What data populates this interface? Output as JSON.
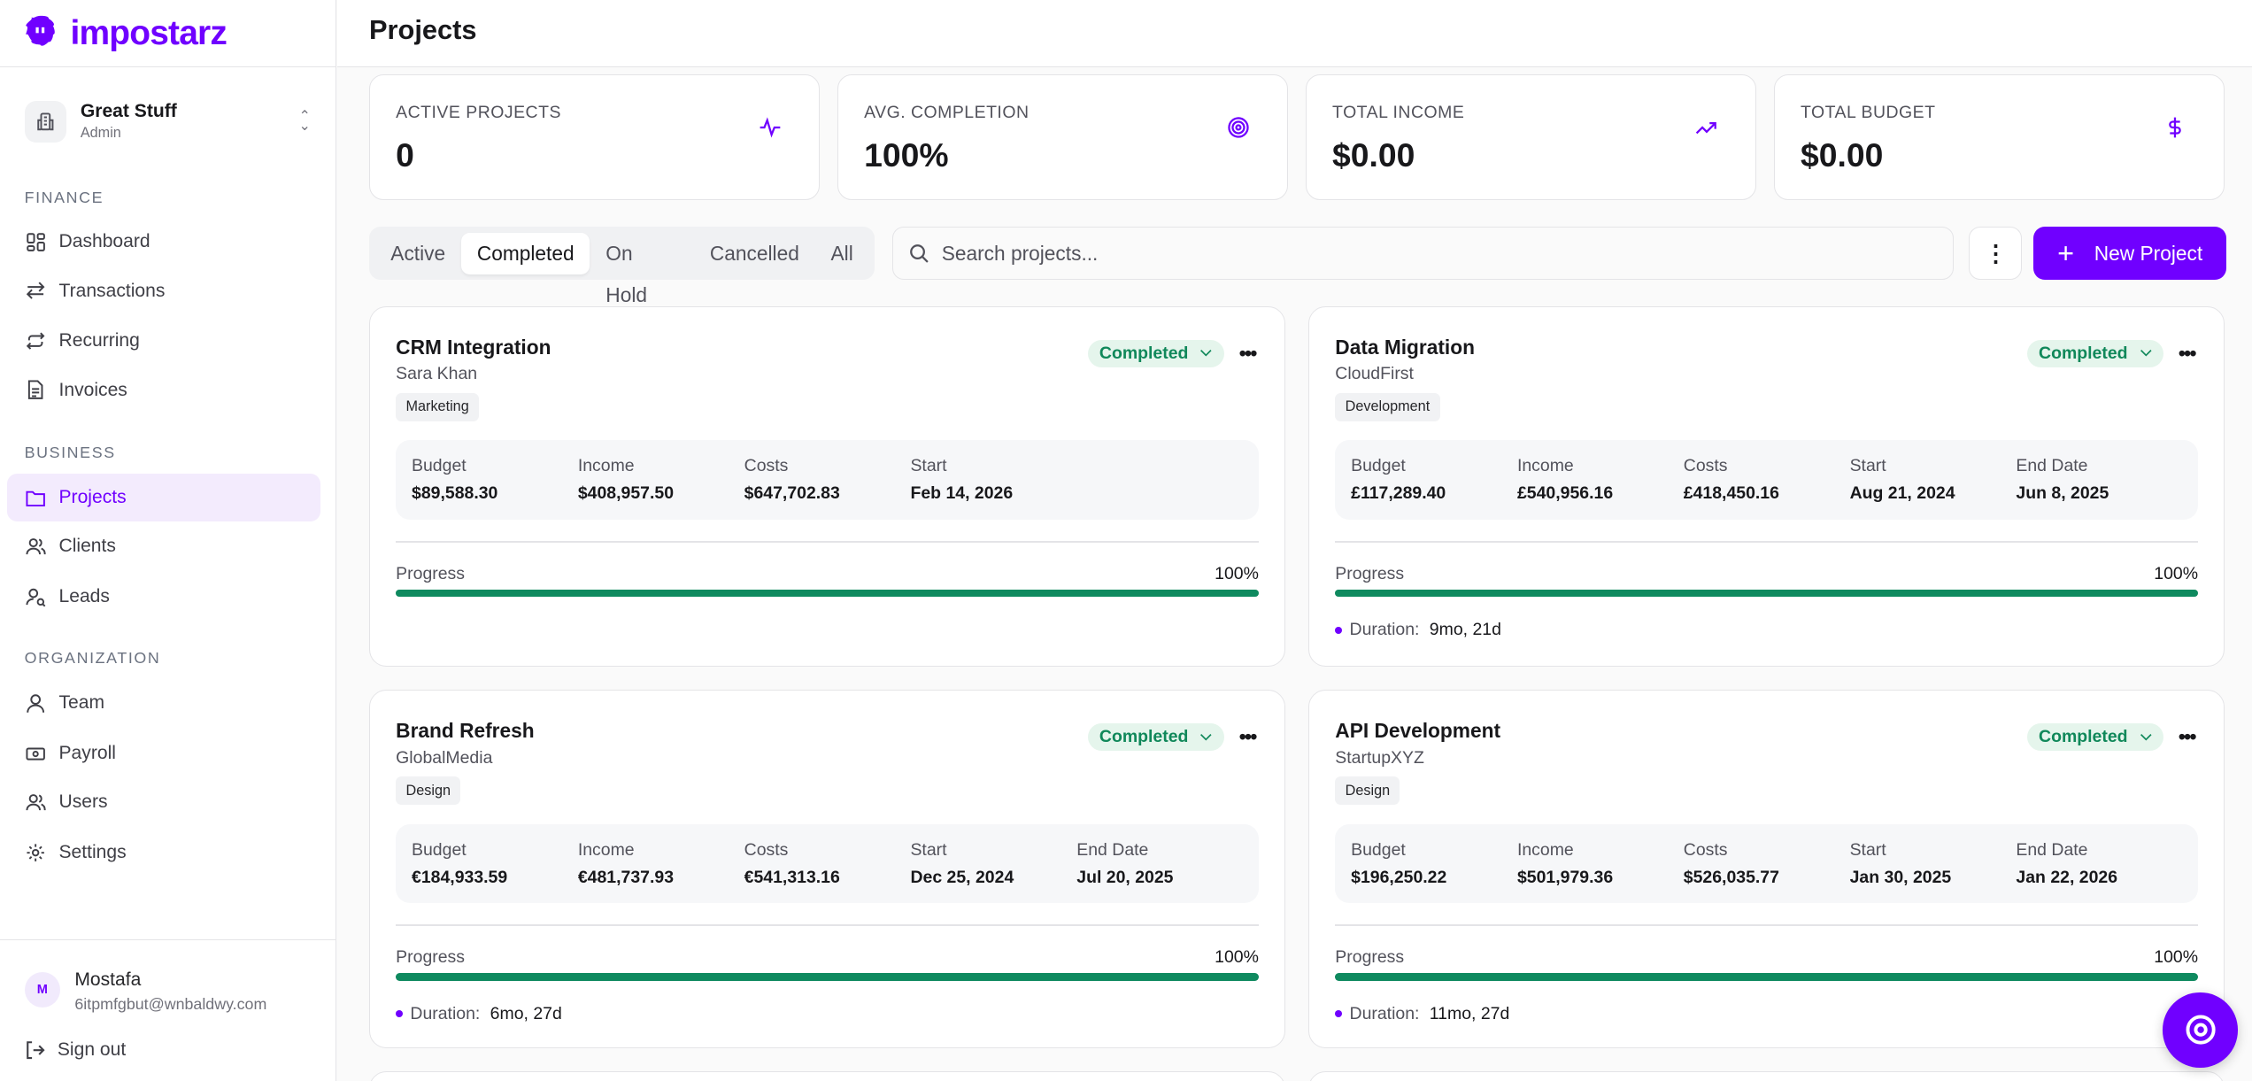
{
  "brand": {
    "name": "impostarz",
    "color": "#7000ff"
  },
  "workspace": {
    "name": "Great Stuff",
    "role": "Admin"
  },
  "sidebar": {
    "sections": [
      "FINANCE",
      "BUSINESS",
      "ORGANIZATION"
    ],
    "items": [
      {
        "label": "Dashboard",
        "icon": "dashboard-icon"
      },
      {
        "label": "Transactions",
        "icon": "arrows-icon"
      },
      {
        "label": "Recurring",
        "icon": "repeat-icon"
      },
      {
        "label": "Invoices",
        "icon": "file-icon"
      },
      {
        "label": "Projects",
        "icon": "folder-icon",
        "active": true
      },
      {
        "label": "Clients",
        "icon": "users-icon"
      },
      {
        "label": "Leads",
        "icon": "user-search-icon"
      },
      {
        "label": "Team",
        "icon": "user-icon"
      },
      {
        "label": "Payroll",
        "icon": "banknote-icon"
      },
      {
        "label": "Users",
        "icon": "users-icon"
      },
      {
        "label": "Settings",
        "icon": "gear-icon"
      }
    ]
  },
  "user": {
    "initial": "M",
    "name": "Mostafa",
    "email": "6itpmfgbut@wnbaldwy.com",
    "signout": "Sign out"
  },
  "header": {
    "title": "Projects"
  },
  "stats": [
    {
      "label": "ACTIVE PROJECTS",
      "value": "0",
      "icon": "activity-icon"
    },
    {
      "label": "AVG. COMPLETION",
      "value": "100%",
      "icon": "target-icon"
    },
    {
      "label": "TOTAL INCOME",
      "value": "$0.00",
      "icon": "trending-up-icon"
    },
    {
      "label": "TOTAL BUDGET",
      "value": "$0.00",
      "icon": "dollar-icon"
    }
  ],
  "filters": {
    "tabs": [
      "Active",
      "Completed",
      "On Hold",
      "Cancelled",
      "All"
    ],
    "selected": "Completed"
  },
  "search": {
    "placeholder": "Search projects...",
    "value": ""
  },
  "new_project": "New Project",
  "labels": {
    "budget": "Budget",
    "income": "Income",
    "costs": "Costs",
    "start": "Start",
    "end": "End Date",
    "progress": "Progress",
    "duration": "Duration:"
  },
  "projects": [
    {
      "title": "CRM Integration",
      "client": "Sara Khan",
      "tag": "Marketing",
      "status": "Completed",
      "budget": "$89,588.30",
      "income": "$408,957.50",
      "costs": "$647,702.83",
      "start": "Feb 14, 2026",
      "progress": "100%"
    },
    {
      "title": "Data Migration",
      "client": "CloudFirst",
      "tag": "Development",
      "status": "Completed",
      "budget": "£117,289.40",
      "income": "£540,956.16",
      "costs": "£418,450.16",
      "start": "Aug 21, 2024",
      "end": "Jun 8, 2025",
      "progress": "100%",
      "duration": "9mo, 21d"
    },
    {
      "title": "Brand Refresh",
      "client": "GlobalMedia",
      "tag": "Design",
      "status": "Completed",
      "budget": "€184,933.59",
      "income": "€481,737.93",
      "costs": "€541,313.16",
      "start": "Dec 25, 2024",
      "end": "Jul 20, 2025",
      "progress": "100%",
      "duration": "6mo, 27d"
    },
    {
      "title": "API Development",
      "client": "StartupXYZ",
      "tag": "Design",
      "status": "Completed",
      "budget": "$196,250.22",
      "income": "$501,979.36",
      "costs": "$526,035.77",
      "start": "Jan 30, 2025",
      "end": "Jan 22, 2026",
      "progress": "100%",
      "duration": "11mo, 27d"
    }
  ]
}
